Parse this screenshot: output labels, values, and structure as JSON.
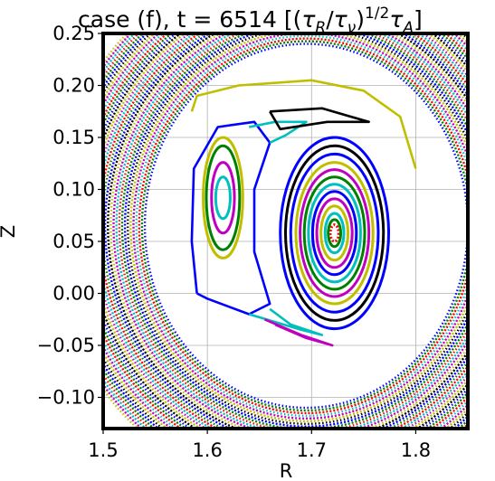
{
  "chart_data": {
    "type": "scatter",
    "title": "case (f), t = 6514 [(τ_R/τ_ν)^{1/2} τ_A]",
    "title_parts": {
      "prefix": "case (f), t = 6514 [(",
      "tau": "τ",
      "sub_R": "R",
      "slash": "/",
      "sub_nu": "ν",
      "close": ")",
      "sup": "1/2",
      "sub_A": "A",
      "end": "]"
    },
    "xlabel": "R",
    "ylabel": "Z",
    "xlim": [
      1.5,
      1.85
    ],
    "ylim": [
      -0.13,
      0.25
    ],
    "xticks": [
      1.5,
      1.6,
      1.7,
      1.8
    ],
    "xtick_labels": [
      "1.5",
      "1.6",
      "1.7",
      "1.8"
    ],
    "yticks": [
      -0.1,
      -0.05,
      0.0,
      0.05,
      0.1,
      0.15,
      0.2,
      0.25
    ],
    "ytick_labels": [
      "−0.10",
      "−0.05",
      "0.00",
      "0.05",
      "0.10",
      "0.15",
      "0.20",
      "0.25"
    ],
    "grid": true,
    "palette": [
      "#0000ff",
      "#008000",
      "#ff0000",
      "#00bfbf",
      "#bf00bf",
      "#bfbf00",
      "#000000"
    ],
    "outer_field_lines": {
      "center": [
        1.695,
        0.065
      ],
      "a_range": [
        0.155,
        0.245
      ],
      "b_range": [
        0.175,
        0.26
      ],
      "count": 34,
      "style": "dotted"
    },
    "island_flux_surfaces": {
      "center": [
        1.722,
        0.058
      ],
      "radii": [
        {
          "a": 0.004,
          "b": 0.008,
          "color": "#ff0000"
        },
        {
          "a": 0.006,
          "b": 0.013,
          "color": "#008000"
        },
        {
          "a": 0.009,
          "b": 0.019,
          "color": "#00bfbf"
        },
        {
          "a": 0.013,
          "b": 0.026,
          "color": "#bfbf00"
        },
        {
          "a": 0.017,
          "b": 0.033,
          "color": "#bf00bf"
        },
        {
          "a": 0.021,
          "b": 0.04,
          "color": "#0000ff"
        },
        {
          "a": 0.025,
          "b": 0.047,
          "color": "#00bfbf"
        },
        {
          "a": 0.029,
          "b": 0.054,
          "color": "#008000"
        },
        {
          "a": 0.033,
          "b": 0.061,
          "color": "#bf00bf"
        },
        {
          "a": 0.037,
          "b": 0.068,
          "color": "#bfbf00"
        },
        {
          "a": 0.042,
          "b": 0.076,
          "color": "#0000ff"
        },
        {
          "a": 0.047,
          "b": 0.084,
          "color": "#000000"
        },
        {
          "a": 0.052,
          "b": 0.092,
          "color": "#0000ff"
        }
      ]
    },
    "left_island": {
      "center": [
        1.615,
        0.092
      ],
      "radii": [
        {
          "a": 0.007,
          "b": 0.02,
          "color": "#00bfbf"
        },
        {
          "a": 0.011,
          "b": 0.034,
          "color": "#bf00bf"
        },
        {
          "a": 0.016,
          "b": 0.05,
          "color": "#008000"
        },
        {
          "a": 0.019,
          "b": 0.058,
          "color": "#bfbf00"
        }
      ]
    },
    "separatrix_curves": [
      {
        "color": "#0000ff",
        "points": [
          [
            1.59,
            0.0
          ],
          [
            1.585,
            0.05
          ],
          [
            1.587,
            0.12
          ],
          [
            1.61,
            0.16
          ],
          [
            1.645,
            0.165
          ],
          [
            1.66,
            0.145
          ],
          [
            1.645,
            0.1
          ],
          [
            1.645,
            0.04
          ],
          [
            1.66,
            -0.01
          ],
          [
            1.64,
            -0.02
          ],
          [
            1.6,
            -0.005
          ],
          [
            1.59,
            0.0
          ]
        ]
      },
      {
        "color": "#00bfbf",
        "points": [
          [
            1.64,
            0.16
          ],
          [
            1.665,
            0.165
          ],
          [
            1.695,
            0.165
          ],
          [
            1.675,
            0.152
          ],
          [
            1.66,
            0.145
          ]
        ]
      },
      {
        "color": "#000000",
        "points": [
          [
            1.66,
            0.175
          ],
          [
            1.71,
            0.178
          ],
          [
            1.755,
            0.165
          ],
          [
            1.715,
            0.165
          ],
          [
            1.67,
            0.158
          ],
          [
            1.66,
            0.175
          ]
        ]
      },
      {
        "color": "#00bfbf",
        "points": [
          [
            1.64,
            -0.02
          ],
          [
            1.69,
            -0.035
          ],
          [
            1.71,
            -0.04
          ],
          [
            1.68,
            -0.03
          ],
          [
            1.66,
            -0.015
          ]
        ]
      },
      {
        "color": "#bf00bf",
        "points": [
          [
            1.655,
            -0.025
          ],
          [
            1.69,
            -0.04
          ],
          [
            1.72,
            -0.05
          ],
          [
            1.695,
            -0.043
          ],
          [
            1.665,
            -0.03
          ]
        ]
      },
      {
        "color": "#bfbf00",
        "points": [
          [
            1.585,
            0.175
          ],
          [
            1.59,
            0.19
          ],
          [
            1.63,
            0.2
          ],
          [
            1.7,
            0.205
          ],
          [
            1.75,
            0.195
          ],
          [
            1.785,
            0.17
          ],
          [
            1.8,
            0.12
          ]
        ]
      }
    ]
  }
}
